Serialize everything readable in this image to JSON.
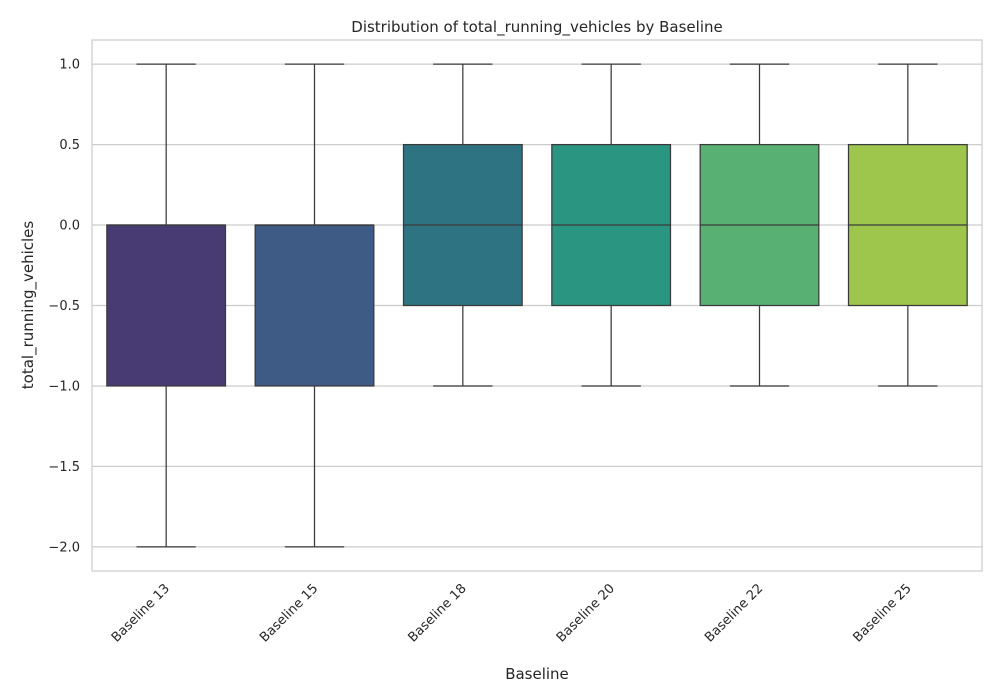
{
  "chart_data": {
    "type": "box",
    "title": "Distribution of total_running_vehicles by Baseline",
    "xlabel": "Baseline",
    "ylabel": "total_running_vehicles",
    "ylim": [
      -2.15,
      1.15
    ],
    "yticks": [
      1.0,
      0.5,
      0.0,
      -0.5,
      -1.0,
      -1.5,
      -2.0
    ],
    "ytick_labels": [
      "1.0",
      "0.5",
      "0.0",
      "−0.5",
      "−1.0",
      "−1.5",
      "−2.0"
    ],
    "grid": true,
    "categories": [
      "Baseline 13",
      "Baseline 15",
      "Baseline 18",
      "Baseline 20",
      "Baseline 22",
      "Baseline 25"
    ],
    "boxes": [
      {
        "category": "Baseline 13",
        "whisker_low": -2.0,
        "q1": -1.0,
        "median": 0.0,
        "q3": 0.0,
        "whisker_high": 1.0,
        "color": "#483a72"
      },
      {
        "category": "Baseline 15",
        "whisker_low": -2.0,
        "q1": -1.0,
        "median": 0.0,
        "q3": 0.0,
        "whisker_high": 1.0,
        "color": "#3e5b85"
      },
      {
        "category": "Baseline 18",
        "whisker_low": -1.0,
        "q1": -0.5,
        "median": 0.0,
        "q3": 0.5,
        "whisker_high": 1.0,
        "color": "#2e7382"
      },
      {
        "category": "Baseline 20",
        "whisker_low": -1.0,
        "q1": -0.5,
        "median": 0.0,
        "q3": 0.5,
        "whisker_high": 1.0,
        "color": "#2a9682"
      },
      {
        "category": "Baseline 22",
        "whisker_low": -1.0,
        "q1": -0.5,
        "median": 0.0,
        "q3": 0.5,
        "whisker_high": 1.0,
        "color": "#58b173"
      },
      {
        "category": "Baseline 25",
        "whisker_low": -1.0,
        "q1": -0.5,
        "median": 0.0,
        "q3": 0.5,
        "whisker_high": 1.0,
        "color": "#9ec54c"
      }
    ]
  }
}
